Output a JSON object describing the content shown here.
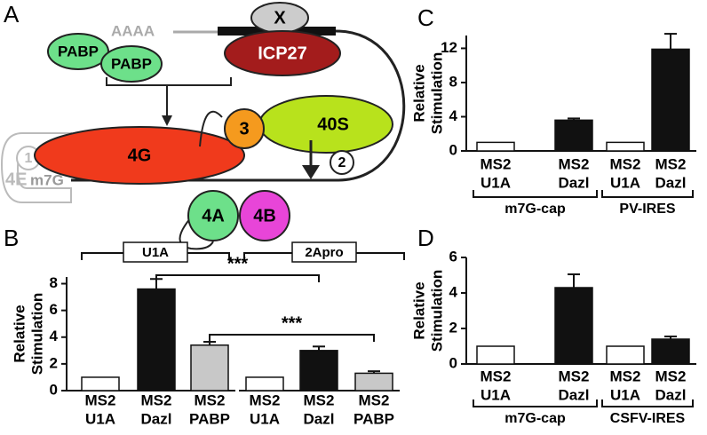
{
  "diagram": {
    "panel": "A",
    "polya": "AAAA",
    "x": "X",
    "pabp1": "PABP",
    "pabp2": "PABP",
    "icp27": "ICP27",
    "eif4g": "4G",
    "eif3": "3",
    "s40": "40S",
    "step1": "1",
    "step2": "2",
    "eif4e": "4E",
    "cap": "m7G",
    "eif4a": "4A",
    "eif4b": "4B"
  },
  "chart_data": [
    {
      "panel": "B",
      "type": "bar",
      "ylabel": [
        "Relative",
        "Stimulation"
      ],
      "ylim": [
        0,
        8.5
      ],
      "yticks": [
        0,
        2,
        4,
        6,
        8
      ],
      "colors": [
        "#ffffff",
        "#111111",
        "#c8c8c8"
      ],
      "groups": [
        {
          "label": "U1A",
          "categories": [
            [
              "MS2",
              "U1A"
            ],
            [
              "MS2",
              "Dazl"
            ],
            [
              "MS2",
              "PABP"
            ]
          ],
          "values": [
            1,
            7.6,
            3.4
          ],
          "errors": [
            null,
            0.75,
            0.25
          ]
        },
        {
          "label": "2Apro",
          "categories": [
            [
              "MS2",
              "U1A"
            ],
            [
              "MS2",
              "Dazl"
            ],
            [
              "MS2",
              "PABP"
            ]
          ],
          "values": [
            1,
            3.0,
            1.3
          ],
          "errors": [
            null,
            0.3,
            0.15
          ]
        }
      ],
      "annotations": [
        "***",
        "***"
      ]
    },
    {
      "panel": "C",
      "type": "bar",
      "ylabel": [
        "Relative",
        "Stimulation"
      ],
      "ylim": [
        0,
        13.5
      ],
      "yticks": [
        0,
        4,
        8,
        12
      ],
      "colors": [
        "#ffffff",
        "#111111"
      ],
      "groups": [
        {
          "label": "m7G-cap",
          "categories": [
            [
              "MS2",
              "U1A"
            ],
            [
              "MS2",
              "Dazl"
            ]
          ],
          "values": [
            1,
            3.6
          ],
          "errors": [
            null,
            0.2
          ]
        },
        {
          "label": "PV-IRES",
          "categories": [
            [
              "MS2",
              "U1A"
            ],
            [
              "MS2",
              "Dazl"
            ]
          ],
          "values": [
            1,
            11.9
          ],
          "errors": [
            null,
            1.8
          ]
        }
      ]
    },
    {
      "panel": "D",
      "type": "bar",
      "ylabel": [
        "Relative",
        "Stimulation"
      ],
      "ylim": [
        0,
        6
      ],
      "yticks": [
        0,
        2,
        4,
        6
      ],
      "colors": [
        "#ffffff",
        "#111111"
      ],
      "groups": [
        {
          "label": "m7G-cap",
          "categories": [
            [
              "MS2",
              "U1A"
            ],
            [
              "MS2",
              "Dazl"
            ]
          ],
          "values": [
            1,
            4.3
          ],
          "errors": [
            null,
            0.75
          ]
        },
        {
          "label": "CSFV-IRES",
          "categories": [
            [
              "MS2",
              "U1A"
            ],
            [
              "MS2",
              "Dazl"
            ]
          ],
          "values": [
            1,
            1.4
          ],
          "errors": [
            null,
            0.15
          ]
        }
      ]
    }
  ]
}
